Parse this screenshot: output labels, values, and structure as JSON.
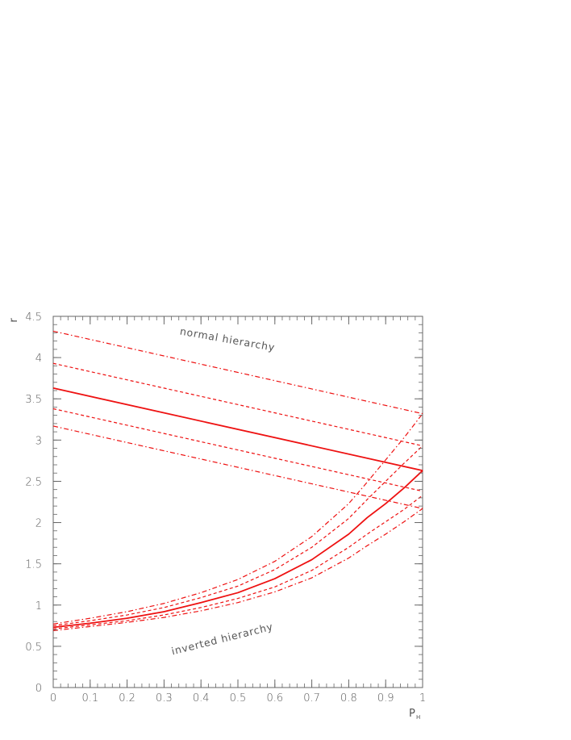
{
  "chart_data": {
    "type": "line",
    "xlabel": "P",
    "xlabel_sub": "H",
    "ylabel": "r",
    "xlim": [
      0,
      1
    ],
    "ylim": [
      0,
      4.5
    ],
    "x_ticks": [
      "0",
      "0.1",
      "0.2",
      "0.3",
      "0.4",
      "0.5",
      "0.6",
      "0.7",
      "0.8",
      "0.9",
      "1"
    ],
    "y_ticks": [
      "0",
      "0.5",
      "1",
      "1.5",
      "2",
      "2.5",
      "3",
      "3.5",
      "4",
      "4.5"
    ],
    "x_minor_step": 0.02,
    "y_minor_step": 0.1,
    "grid": false,
    "color": "#ee1111",
    "annotations": [
      {
        "text": "normal hierarchy",
        "x": 0.47,
        "y": 4.18,
        "angle": 10
      },
      {
        "text": "inverted hierarchy",
        "x": 0.46,
        "y": 0.55,
        "angle": -14
      }
    ],
    "series": [
      {
        "group": "normal hierarchy",
        "style": "solid",
        "x": [
          0,
          1
        ],
        "y": [
          3.63,
          2.63
        ]
      },
      {
        "group": "normal hierarchy",
        "style": "dashed",
        "x": [
          0,
          1
        ],
        "y": [
          3.93,
          2.93
        ]
      },
      {
        "group": "normal hierarchy",
        "style": "dashed",
        "x": [
          0,
          1
        ],
        "y": [
          3.38,
          2.38
        ]
      },
      {
        "group": "normal hierarchy",
        "style": "dashdot",
        "x": [
          0,
          1
        ],
        "y": [
          4.32,
          3.32
        ]
      },
      {
        "group": "normal hierarchy",
        "style": "dashdot",
        "x": [
          0,
          1
        ],
        "y": [
          3.17,
          2.17
        ]
      },
      {
        "group": "inverted hierarchy",
        "style": "solid",
        "x": [
          0,
          0.1,
          0.2,
          0.3,
          0.4,
          0.5,
          0.6,
          0.7,
          0.8,
          0.85,
          0.9,
          0.95,
          1
        ],
        "y": [
          0.73,
          0.78,
          0.84,
          0.92,
          1.03,
          1.15,
          1.32,
          1.55,
          1.86,
          2.06,
          2.23,
          2.42,
          2.63
        ]
      },
      {
        "group": "inverted hierarchy",
        "style": "dashed",
        "x": [
          0,
          0.1,
          0.2,
          0.3,
          0.4,
          0.5,
          0.6,
          0.7,
          0.8,
          0.85,
          0.9,
          0.95,
          1
        ],
        "y": [
          0.75,
          0.81,
          0.88,
          0.97,
          1.09,
          1.23,
          1.43,
          1.7,
          2.05,
          2.28,
          2.5,
          2.72,
          2.93
        ]
      },
      {
        "group": "inverted hierarchy",
        "style": "dashed",
        "x": [
          0,
          0.1,
          0.2,
          0.3,
          0.4,
          0.5,
          0.6,
          0.7,
          0.8,
          0.85,
          0.9,
          0.95,
          1
        ],
        "y": [
          0.71,
          0.76,
          0.81,
          0.88,
          0.97,
          1.08,
          1.22,
          1.42,
          1.7,
          1.86,
          2.01,
          2.16,
          2.33
        ]
      },
      {
        "group": "inverted hierarchy",
        "style": "dashdot",
        "x": [
          0,
          0.1,
          0.2,
          0.3,
          0.4,
          0.5,
          0.6,
          0.7,
          0.8,
          0.85,
          0.9,
          0.95,
          1
        ],
        "y": [
          0.77,
          0.84,
          0.92,
          1.02,
          1.15,
          1.31,
          1.53,
          1.83,
          2.23,
          2.49,
          2.76,
          3.03,
          3.32
        ]
      },
      {
        "group": "inverted hierarchy",
        "style": "dashdot",
        "x": [
          0,
          0.1,
          0.2,
          0.3,
          0.4,
          0.5,
          0.6,
          0.7,
          0.8,
          0.85,
          0.9,
          0.95,
          1
        ],
        "y": [
          0.69,
          0.74,
          0.79,
          0.85,
          0.93,
          1.03,
          1.16,
          1.33,
          1.57,
          1.72,
          1.86,
          2.01,
          2.17
        ]
      }
    ]
  }
}
